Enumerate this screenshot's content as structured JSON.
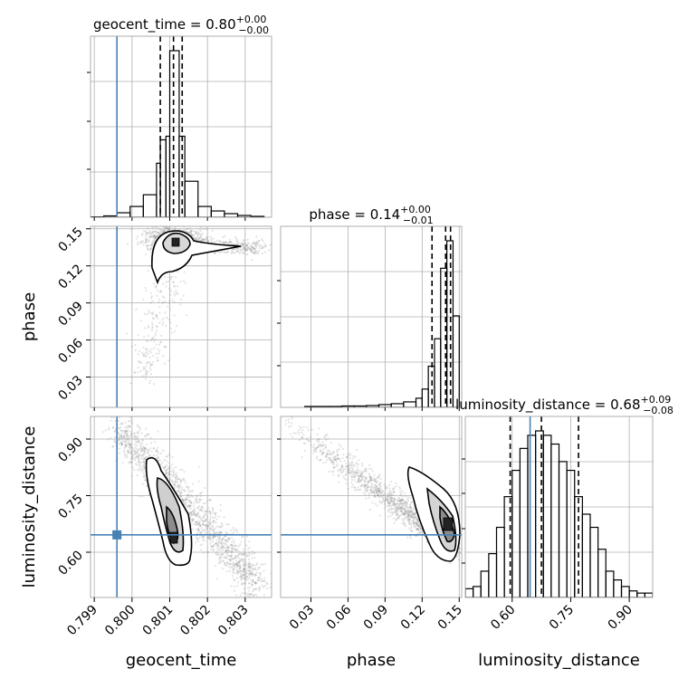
{
  "chart_data": {
    "type": "corner",
    "parameters": [
      "geocent_time",
      "phase",
      "luminosity_distance"
    ],
    "truth": {
      "geocent_time": 0.7996,
      "phase": null,
      "luminosity_distance": 0.646
    },
    "colors": {
      "truth": "#4682b4",
      "hist": "#000000",
      "grid": "#b0b0b0",
      "scatter": "#808080"
    },
    "marginals": [
      {
        "param": "geocent_time",
        "title": "geocent_time = 0.80",
        "title_plus": "+0.00",
        "title_minus": "−0.00",
        "quantiles": [
          0.80075,
          0.8011,
          0.80133
        ],
        "xlim": [
          0.7989,
          0.8037
        ],
        "bins": [
          0.7989,
          0.79925,
          0.7996,
          0.79995,
          0.8003,
          0.80065,
          0.80075,
          0.8009,
          0.801,
          0.80125,
          0.8014,
          0.80175,
          0.8021,
          0.80245,
          0.8028,
          0.80315,
          0.8035
        ],
        "counts": [
          0.4,
          1.5,
          5,
          12,
          25,
          60,
          86,
          90,
          185,
          90,
          40,
          12,
          7,
          4,
          2,
          1
        ]
      },
      {
        "param": "phase",
        "title": "phase = 0.14",
        "title_plus": "+0.00",
        "title_minus": "−0.01",
        "quantiles": [
          0.128,
          0.139,
          0.143
        ],
        "xlim": [
          0.0055,
          0.152
        ],
        "bins": [
          0.0055,
          0.015,
          0.025,
          0.035,
          0.045,
          0.055,
          0.065,
          0.075,
          0.085,
          0.095,
          0.105,
          0.115,
          0.12,
          0.125,
          0.13,
          0.135,
          0.14,
          0.145,
          0.15
        ],
        "counts": [
          0,
          0,
          1,
          1,
          1,
          1.5,
          1.5,
          2,
          3,
          4,
          6,
          10,
          20,
          45,
          75,
          152,
          182,
          100
        ]
      },
      {
        "param": "luminosity_distance",
        "title": "luminosity_distance = 0.68",
        "title_plus": "+0.09",
        "title_minus": "−0.08",
        "quantiles": [
          0.595,
          0.675,
          0.77
        ],
        "xlim": [
          0.48,
          0.96
        ],
        "bins": [
          0.48,
          0.5,
          0.52,
          0.54,
          0.56,
          0.58,
          0.6,
          0.62,
          0.64,
          0.66,
          0.68,
          0.7,
          0.72,
          0.74,
          0.76,
          0.78,
          0.8,
          0.82,
          0.84,
          0.86,
          0.88,
          0.9,
          0.92,
          0.94,
          0.96
        ],
        "counts": [
          2,
          2.5,
          6,
          10,
          16,
          23,
          29,
          34,
          37,
          38,
          37,
          35,
          31,
          29,
          23,
          19,
          16,
          11,
          6,
          4,
          2.5,
          1.5,
          1,
          1
        ]
      }
    ],
    "axes": {
      "geocent_time": {
        "range": [
          0.7989,
          0.8037
        ],
        "ticks": [
          "0.799",
          "0.800",
          "0.801",
          "0.802",
          "0.803"
        ],
        "tick_values": [
          0.799,
          0.8,
          0.801,
          0.802,
          0.803
        ]
      },
      "phase": {
        "range": [
          0.0055,
          0.152
        ],
        "ticks": [
          "0.03",
          "0.06",
          "0.09",
          "0.12",
          "0.15"
        ],
        "tick_values": [
          0.03,
          0.06,
          0.09,
          0.12,
          0.15
        ]
      },
      "luminosity_distance": {
        "range": [
          0.48,
          0.96
        ],
        "ticks": [
          "0.60",
          "0.75",
          "0.90"
        ],
        "tick_values": [
          0.6,
          0.75,
          0.9
        ]
      }
    },
    "xlabels": [
      "geocent_time",
      "phase",
      "luminosity_distance"
    ],
    "ylabels": [
      "phase",
      "luminosity_distance"
    ],
    "grid": true
  }
}
